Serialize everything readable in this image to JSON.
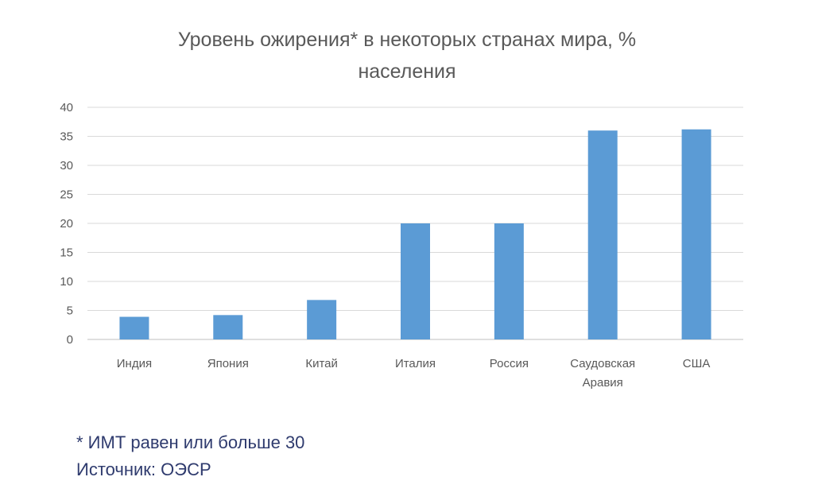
{
  "chart_data": {
    "type": "bar",
    "title_lines": [
      "Уровень ожирения* в некоторых странах мира, %",
      "населения"
    ],
    "categories": [
      [
        "Индия"
      ],
      [
        "Япония"
      ],
      [
        "Китай"
      ],
      [
        "Италия"
      ],
      [
        "Россия"
      ],
      [
        "Саудовская",
        "Аравия"
      ],
      [
        "США"
      ]
    ],
    "values": [
      3.9,
      4.2,
      6.8,
      20.0,
      20.0,
      36.0,
      36.2
    ],
    "ylim": [
      0,
      40
    ],
    "yticks": [
      0,
      5,
      10,
      15,
      20,
      25,
      30,
      35,
      40
    ],
    "grid": true,
    "legend": "none",
    "bar_color": "#5b9bd5",
    "grid_color": "#d9d9d9",
    "xlabel": "",
    "ylabel": ""
  },
  "notes": {
    "footnote": "* ИМТ равен или больше 30",
    "source": "Источник: ОЭСР"
  }
}
